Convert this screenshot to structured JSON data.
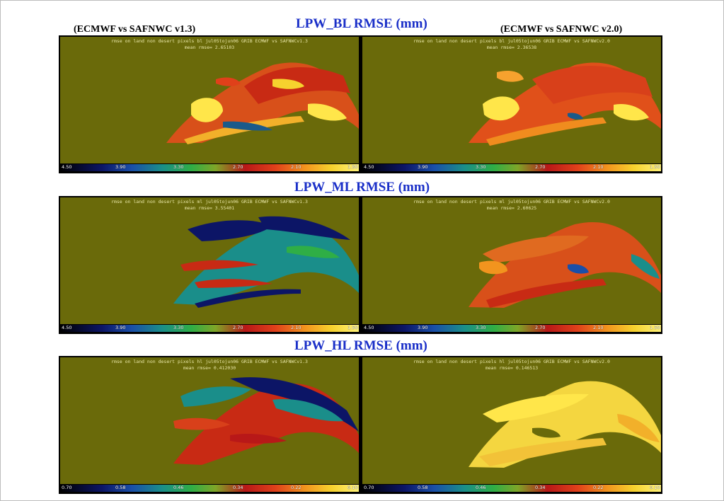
{
  "titles": {
    "bl": "LPW_BL RMSE (mm)",
    "ml": "LPW_ML RMSE (mm)",
    "hl": "LPW_HL RMSE (mm)"
  },
  "subtitles": {
    "left": "(ECMWF vs SAFNWC v1.3)",
    "right": "(ECMWF vs SAFNWC v2.0)"
  },
  "panels": {
    "bl_v13": {
      "line1": "rmse on land non desert pixels bl jul05tojun06 GRIB ECMWF vs SAFNWCv1.3",
      "line2": "mean rmse=      2.65103"
    },
    "bl_v20": {
      "line1": "rmse on land non desert pixels bl jul05tojun06 GRIB ECMWF vs SAFNWCv2.0",
      "line2": "mean rmse=      2.36538"
    },
    "ml_v13": {
      "line1": "rmse on land non desert pixels ml jul05tojun06 GRIB ECMWF vs SAFNWCv1.3",
      "line2": "mean rmse=      3.55401"
    },
    "ml_v20": {
      "line1": "rmse on land non desert pixels ml jul05tojun06 GRIB ECMWF vs SAFNWCv2.0",
      "line2": "mean rmse=      2.60625"
    },
    "hl_v13": {
      "line1": "rmse on land non desert pixels hl jul05tojun06 GRIB ECMWF vs SAFNWCv1.3",
      "line2": "mean rmse=   0.412030"
    },
    "hl_v20": {
      "line1": "rmse on land non desert pixels hl jul05tojun06 GRIB ECMWF vs SAFNWCv2.0",
      "line2": "mean rmse=   0.146513"
    }
  },
  "colorbars": {
    "bl_ml": [
      "4.50",
      "3.90",
      "3.30",
      "2.70",
      "2.10",
      "1.50"
    ],
    "hl": [
      "0.70",
      "0.58",
      "0.46",
      "0.34",
      "0.22",
      "0.10"
    ]
  },
  "colors": {
    "title": "#1a2fc8",
    "map_background": "#6a6a0a",
    "header_text": "#e8e6a6"
  }
}
